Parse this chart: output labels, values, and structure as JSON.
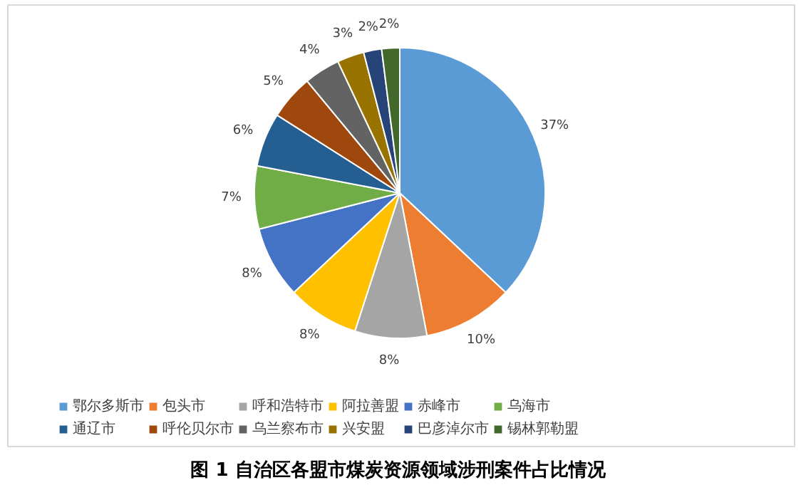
{
  "chart_data": {
    "type": "pie",
    "title": "图 1  自治区各盟市煤炭资源领域涉刑案件占比情况",
    "categories": [
      "鄂尔多斯市",
      "包头市",
      "呼和浩特市",
      "阿拉善盟",
      "赤峰市",
      "乌海市",
      "通辽市",
      "呼伦贝尔市",
      "乌兰察布市",
      "兴安盟",
      "巴彦淖尔市",
      "锡林郭勒盟"
    ],
    "values": [
      37,
      10,
      8,
      8,
      8,
      7,
      6,
      5,
      4,
      3,
      2,
      2
    ],
    "colors": [
      "#5b9bd5",
      "#ed7d31",
      "#a5a5a5",
      "#ffc000",
      "#4472c4",
      "#70ad47",
      "#255e91",
      "#9e480e",
      "#636363",
      "#997300",
      "#264478",
      "#43682b"
    ],
    "value_labels": [
      "37%",
      "10%",
      "8%",
      "8%",
      "8%",
      "7%",
      "6%",
      "5%",
      "4%",
      "3%",
      "2%",
      "2%"
    ],
    "legend": "bottom"
  }
}
